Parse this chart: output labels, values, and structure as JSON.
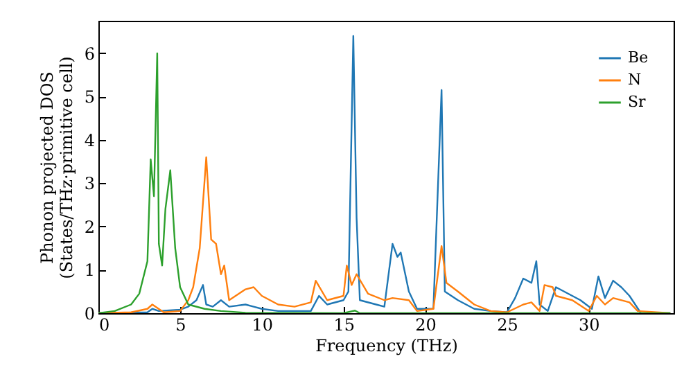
{
  "chart_data": {
    "type": "line",
    "xlabel": "Frequency (THz)",
    "ylabel": "Phonon projected DOS\n(States/THz·primitive cell)",
    "xlim": [
      0,
      35.2
    ],
    "ylim": [
      0,
      6.75
    ],
    "xticks": [
      0,
      5,
      10,
      15,
      20,
      25,
      30
    ],
    "yticks": [
      0,
      1,
      2,
      3,
      4,
      5,
      6
    ],
    "legend": "top right",
    "grid": false,
    "series": [
      {
        "name": "Be",
        "color": "#1f77b4",
        "x": [
          0,
          3,
          3.3,
          3.7,
          5,
          5.5,
          6,
          6.4,
          6.6,
          7,
          7.5,
          8,
          9,
          9.5,
          10,
          11,
          13,
          13.5,
          14,
          15,
          15.3,
          15.6,
          15.8,
          16,
          17,
          17.5,
          18,
          18.3,
          18.5,
          19,
          19.5,
          20.5,
          21,
          21.2,
          22,
          23,
          24,
          25,
          25.5,
          26,
          26.5,
          26.8,
          27,
          27.5,
          28,
          28.5,
          29.5,
          30.2,
          30.6,
          31,
          31.5,
          32,
          32.5,
          33.2,
          35
        ],
        "values": [
          0,
          0.02,
          0.1,
          0.05,
          0.08,
          0.15,
          0.3,
          0.65,
          0.2,
          0.15,
          0.3,
          0.15,
          0.2,
          0.15,
          0.1,
          0.05,
          0.05,
          0.4,
          0.2,
          0.3,
          0.5,
          6.4,
          2.2,
          0.3,
          0.2,
          0.15,
          1.6,
          1.3,
          1.4,
          0.5,
          0.1,
          0.1,
          5.15,
          0.5,
          0.3,
          0.1,
          0.05,
          0.02,
          0.35,
          0.8,
          0.7,
          1.2,
          0.2,
          0.05,
          0.6,
          0.5,
          0.3,
          0.1,
          0.85,
          0.35,
          0.75,
          0.6,
          0.4,
          0,
          0
        ]
      },
      {
        "name": "N",
        "color": "#ff7f0e",
        "x": [
          0,
          2,
          3,
          3.3,
          4,
          5,
          5.5,
          5.8,
          6.2,
          6.6,
          6.9,
          7.2,
          7.5,
          7.7,
          8,
          9,
          9.5,
          10,
          11,
          12,
          13,
          13.3,
          14,
          15,
          15.2,
          15.5,
          15.8,
          16.5,
          17.5,
          18,
          19,
          19.5,
          20.5,
          21,
          21.3,
          22,
          23,
          24,
          25,
          26,
          26.5,
          27,
          27.3,
          27.8,
          28,
          29,
          30,
          30.5,
          31,
          31.5,
          32.5,
          33,
          35
        ],
        "values": [
          0,
          0.02,
          0.1,
          0.2,
          0.02,
          0.05,
          0.3,
          0.6,
          1.5,
          3.6,
          1.7,
          1.6,
          0.9,
          1.1,
          0.3,
          0.55,
          0.6,
          0.4,
          0.2,
          0.15,
          0.25,
          0.75,
          0.3,
          0.4,
          1.1,
          0.65,
          0.9,
          0.45,
          0.3,
          0.35,
          0.3,
          0.05,
          0.1,
          1.55,
          0.7,
          0.5,
          0.2,
          0.05,
          0.02,
          0.2,
          0.25,
          0.05,
          0.65,
          0.6,
          0.4,
          0.3,
          0.05,
          0.4,
          0.2,
          0.35,
          0.25,
          0.05,
          0
        ]
      },
      {
        "name": "Sr",
        "color": "#2ca02c",
        "x": [
          0,
          1,
          2,
          2.5,
          3,
          3.2,
          3.4,
          3.6,
          3.7,
          3.9,
          4.1,
          4.4,
          4.7,
          5,
          5.5,
          6.5,
          7.5,
          9,
          15,
          15.7,
          16,
          35
        ],
        "values": [
          0,
          0.05,
          0.2,
          0.45,
          1.2,
          3.55,
          2.7,
          6,
          1.6,
          1.1,
          2.4,
          3.3,
          1.5,
          0.6,
          0.2,
          0.1,
          0.05,
          0.01,
          0,
          0.06,
          0,
          0
        ]
      }
    ]
  }
}
